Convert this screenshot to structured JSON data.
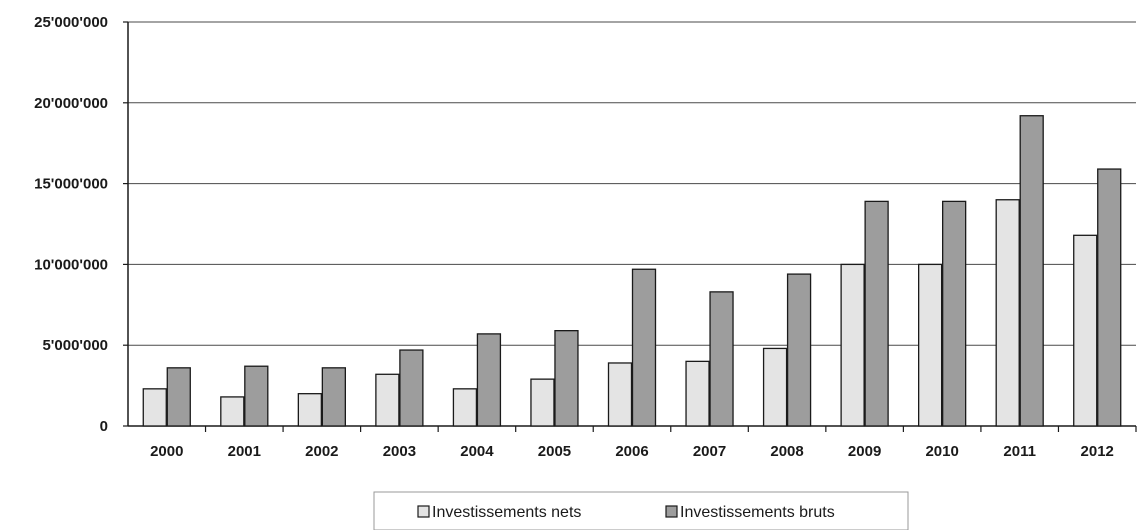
{
  "chart_data": {
    "type": "bar",
    "title": "",
    "xlabel": "",
    "ylabel": "",
    "categories": [
      "2000",
      "2001",
      "2002",
      "2003",
      "2004",
      "2005",
      "2006",
      "2007",
      "2008",
      "2009",
      "2010",
      "2011",
      "2012"
    ],
    "series": [
      {
        "name": "Investissements nets",
        "color": "#e4e4e4",
        "values": [
          2300000,
          1800000,
          2000000,
          3200000,
          2300000,
          2900000,
          3900000,
          4000000,
          4800000,
          10000000,
          10000000,
          14000000,
          11800000
        ]
      },
      {
        "name": "Investissements bruts",
        "color": "#9d9d9d",
        "values": [
          3600000,
          3700000,
          3600000,
          4700000,
          5700000,
          5900000,
          9700000,
          8300000,
          9400000,
          13900000,
          13900000,
          19200000,
          15900000
        ]
      }
    ],
    "ylim": [
      0,
      25000000
    ],
    "yticks": [
      0,
      5000000,
      10000000,
      15000000,
      20000000,
      25000000
    ],
    "ytick_labels": [
      "0",
      "5'000'000",
      "10'000'000",
      "15'000'000",
      "20'000'000",
      "25'000'000"
    ],
    "grid": true,
    "legend_position": "bottom"
  }
}
